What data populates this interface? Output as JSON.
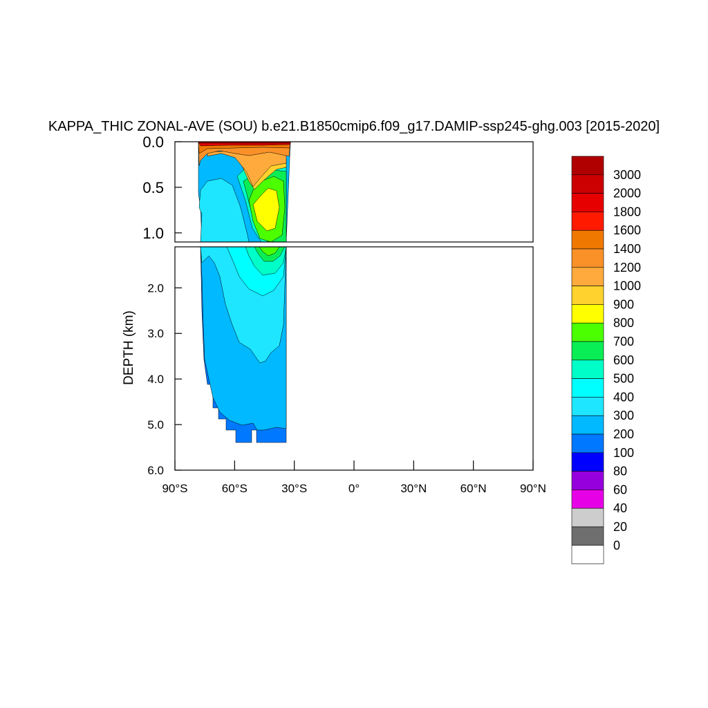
{
  "chart_data": {
    "type": "heatmap",
    "title": "KAPPA_THIC ZONAL-AVE (SOU) b.e21.B1850cmip6.f09_g17.DAMIP-ssp245-ghg.003 [2015-2020]",
    "ylabel": "DEPTH (km)",
    "xlabel": "",
    "x_ticks": [
      "90°S",
      "60°S",
      "30°S",
      "0°",
      "30°N",
      "60°N",
      "90°N"
    ],
    "x_tick_values": [
      -90,
      -60,
      -30,
      0,
      30,
      60,
      90
    ],
    "xlim": [
      -90,
      90
    ],
    "upper_panel": {
      "ylim": [
        0.0,
        1.1
      ],
      "y_ticks": [
        "0.0",
        "0.5",
        "1.0"
      ],
      "y_tick_values": [
        0.0,
        0.5,
        1.0
      ]
    },
    "lower_panel": {
      "ylim": [
        1.1,
        6.0
      ],
      "y_ticks": [
        "2.0",
        "3.0",
        "4.0",
        "5.0",
        "6.0"
      ],
      "y_tick_values": [
        2.0,
        3.0,
        4.0,
        5.0,
        6.0
      ]
    },
    "data_lat_range": [
      -78,
      -34
    ],
    "max_depth_km": 5.35,
    "grid": false,
    "legend_placement": "right",
    "levels": [
      "3000",
      "2000",
      "1800",
      "1600",
      "1400",
      "1200",
      "1000",
      "900",
      "800",
      "700",
      "600",
      "500",
      "400",
      "300",
      "200",
      "100",
      "80",
      "60",
      "40",
      "20",
      "0"
    ],
    "colors": [
      "#b00000",
      "#cc0000",
      "#e60000",
      "#ff1a00",
      "#f07800",
      "#fa9128",
      "#ffaa3c",
      "#ffd22d",
      "#ffff00",
      "#4bff00",
      "#0aee55",
      "#00ffc8",
      "#00ffff",
      "#1ee6ff",
      "#00b9ff",
      "#0078ff",
      "#0000ff",
      "#9600dc",
      "#e600e6",
      "#cdcdcd",
      "#6e6e6e",
      "#ffffff"
    ]
  }
}
